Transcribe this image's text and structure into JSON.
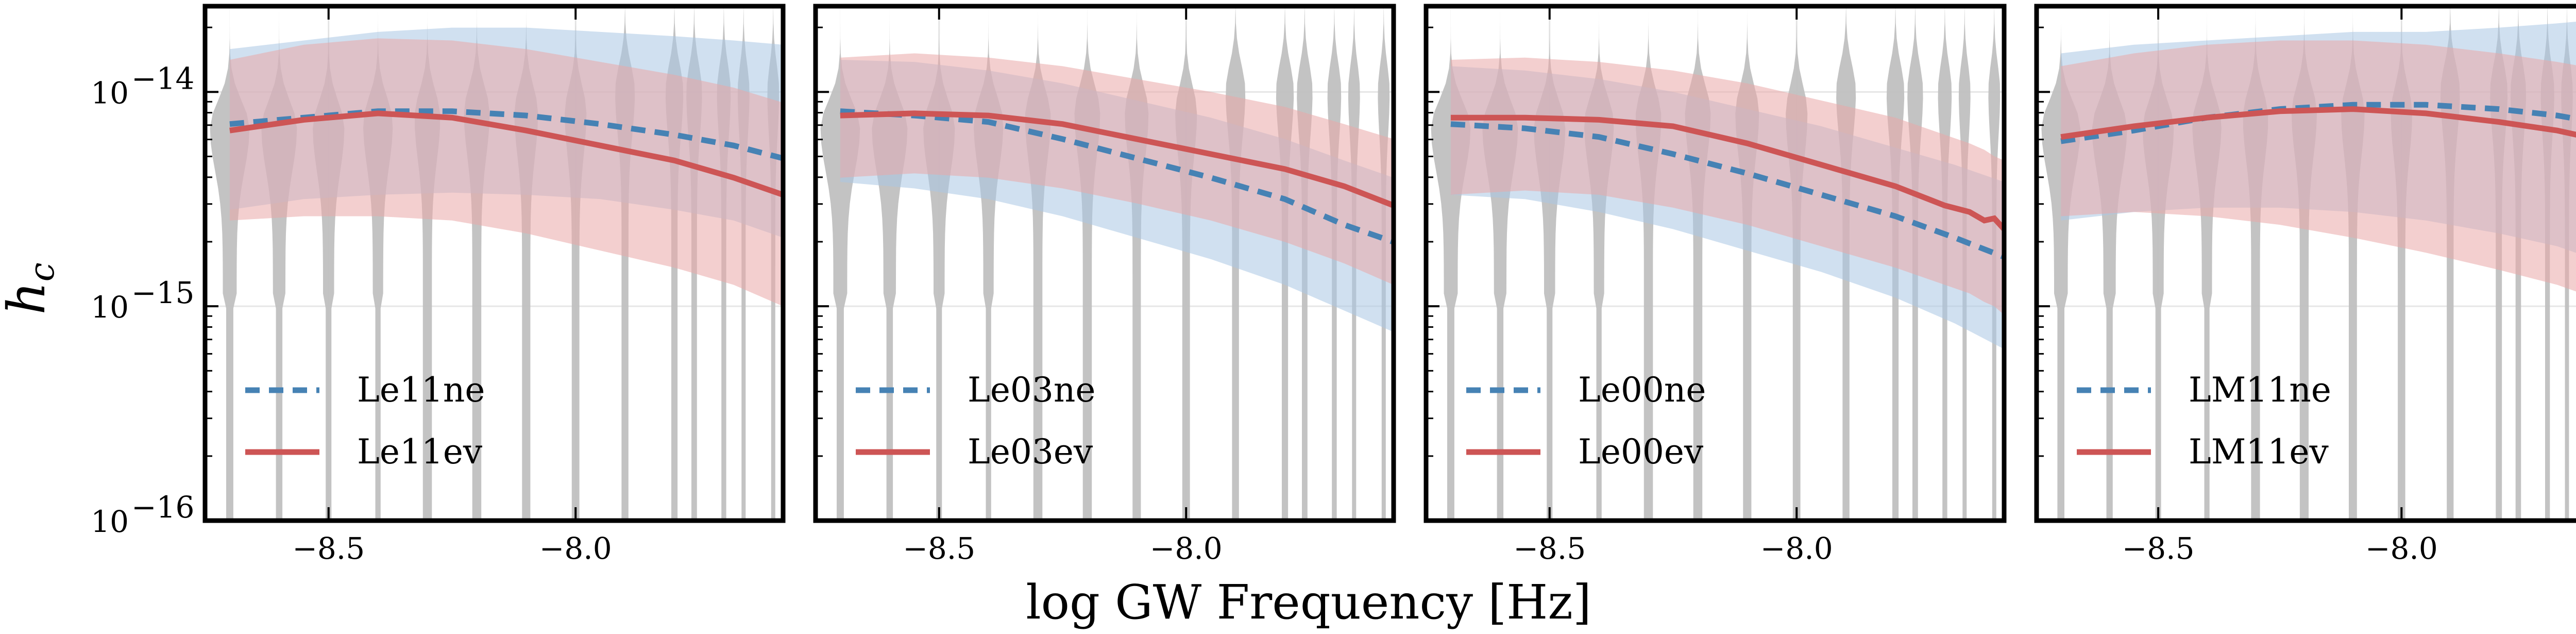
{
  "chart_data": {
    "type": "line",
    "xlabel": "log GW Frequency [Hz]",
    "ylabel": "h",
    "ylabel_sub": "c",
    "xlim": [
      -8.75,
      -7.58
    ],
    "ylim_log10": [
      -16,
      -13.6
    ],
    "yscale": "log",
    "xticks": [
      -8.5,
      -8.0
    ],
    "xtick_labels": [
      "−8.5",
      "−8.0"
    ],
    "yticks_exp": [
      -14,
      -15,
      -16
    ],
    "ytick_base": "10",
    "ytick_exp_labels": [
      "−14",
      "−15",
      "−16"
    ],
    "grid": true,
    "legend_position": "lower-left",
    "colors": {
      "dashed": "#4682b4",
      "solid": "#cd5555",
      "violin": "#c0c0c0",
      "band_dashed": "#a9c6e3",
      "band_solid": "#eaa7a7"
    },
    "violins": {
      "x": [
        -8.7,
        -8.6,
        -8.5,
        -8.4,
        -8.3,
        -8.2,
        -8.1,
        -8.0,
        -7.9,
        -7.8,
        -7.76,
        -7.7,
        -7.66,
        -7.6
      ],
      "median_log10": [
        -14.17,
        -14.17,
        -14.17,
        -14.15,
        -14.12,
        -14.1,
        -14.1,
        -14.1,
        -14.0,
        -14.0,
        -14.0,
        -14.0,
        -14.0,
        -14.0
      ],
      "width": [
        0.04,
        0.036,
        0.032,
        0.03,
        0.026,
        0.026,
        0.024,
        0.022,
        0.02,
        0.018,
        0.016,
        0.014,
        0.012,
        0.012
      ]
    },
    "panels": [
      {
        "series": [
          {
            "name": "Le11ne",
            "style": "dashed",
            "x": [
              -8.7,
              -8.55,
              -8.4,
              -8.25,
              -8.1,
              -7.95,
              -7.8,
              -7.68,
              -7.58
            ],
            "log10": [
              -14.15,
              -14.12,
              -14.09,
              -14.09,
              -14.11,
              -14.15,
              -14.2,
              -14.25,
              -14.31
            ],
            "band_lo": [
              -14.55,
              -14.5,
              -14.48,
              -14.47,
              -14.48,
              -14.5,
              -14.55,
              -14.6,
              -14.68
            ],
            "band_hi": [
              -13.8,
              -13.76,
              -13.72,
              -13.7,
              -13.7,
              -13.72,
              -13.74,
              -13.76,
              -13.78
            ]
          },
          {
            "name": "Le11ev",
            "style": "solid",
            "x": [
              -8.7,
              -8.55,
              -8.4,
              -8.25,
              -8.1,
              -7.95,
              -7.8,
              -7.68,
              -7.58
            ],
            "log10": [
              -14.18,
              -14.13,
              -14.1,
              -14.12,
              -14.18,
              -14.25,
              -14.32,
              -14.4,
              -14.48
            ],
            "band_lo": [
              -14.6,
              -14.58,
              -14.58,
              -14.6,
              -14.66,
              -14.74,
              -14.82,
              -14.9,
              -15.0
            ],
            "band_hi": [
              -13.85,
              -13.78,
              -13.75,
              -13.76,
              -13.8,
              -13.86,
              -13.92,
              -13.98,
              -14.05
            ]
          }
        ]
      },
      {
        "series": [
          {
            "name": "Le03ne",
            "style": "dashed",
            "x": [
              -8.7,
              -8.55,
              -8.4,
              -8.25,
              -8.1,
              -7.95,
              -7.8,
              -7.68,
              -7.58
            ],
            "log10": [
              -14.09,
              -14.11,
              -14.14,
              -14.22,
              -14.31,
              -14.4,
              -14.5,
              -14.62,
              -14.7
            ],
            "band_lo": [
              -14.42,
              -14.45,
              -14.5,
              -14.58,
              -14.68,
              -14.78,
              -14.9,
              -15.02,
              -15.12
            ],
            "band_hi": [
              -13.85,
              -13.86,
              -13.9,
              -13.96,
              -14.04,
              -14.12,
              -14.22,
              -14.32,
              -14.4
            ]
          },
          {
            "name": "Le03ev",
            "style": "solid",
            "x": [
              -8.7,
              -8.55,
              -8.4,
              -8.25,
              -8.1,
              -7.95,
              -7.8,
              -7.68,
              -7.58
            ],
            "log10": [
              -14.11,
              -14.1,
              -14.11,
              -14.15,
              -14.22,
              -14.29,
              -14.36,
              -14.44,
              -14.53
            ],
            "band_lo": [
              -14.4,
              -14.38,
              -14.4,
              -14.45,
              -14.52,
              -14.6,
              -14.7,
              -14.8,
              -14.9
            ],
            "band_hi": [
              -13.84,
              -13.82,
              -13.84,
              -13.88,
              -13.94,
              -14.0,
              -14.07,
              -14.15,
              -14.22
            ]
          }
        ]
      },
      {
        "series": [
          {
            "name": "Le00ne",
            "style": "dashed",
            "x": [
              -8.7,
              -8.55,
              -8.4,
              -8.25,
              -8.1,
              -7.95,
              -7.8,
              -7.68,
              -7.58
            ],
            "log10": [
              -14.15,
              -14.17,
              -14.21,
              -14.29,
              -14.38,
              -14.48,
              -14.58,
              -14.68,
              -14.77
            ],
            "band_lo": [
              -14.48,
              -14.5,
              -14.56,
              -14.64,
              -14.74,
              -14.84,
              -14.96,
              -15.08,
              -15.2
            ],
            "band_hi": [
              -13.88,
              -13.9,
              -13.94,
              -14.0,
              -14.08,
              -14.16,
              -14.26,
              -14.34,
              -14.42
            ]
          },
          {
            "name": "Le00ev",
            "style": "solid",
            "x": [
              -8.7,
              -8.55,
              -8.4,
              -8.25,
              -8.1,
              -7.95,
              -7.8,
              -7.7,
              -7.65,
              -7.62,
              -7.6,
              -7.58
            ],
            "log10": [
              -14.12,
              -14.12,
              -14.13,
              -14.16,
              -14.24,
              -14.34,
              -14.44,
              -14.53,
              -14.56,
              -14.6,
              -14.59,
              -14.64
            ],
            "band_lo": [
              -14.48,
              -14.46,
              -14.48,
              -14.54,
              -14.62,
              -14.72,
              -14.82,
              -14.9,
              -14.94,
              -14.98,
              -15.0,
              -15.04
            ],
            "band_hi": [
              -13.85,
              -13.84,
              -13.86,
              -13.9,
              -13.96,
              -14.04,
              -14.12,
              -14.2,
              -14.24,
              -14.27,
              -14.3,
              -14.32
            ]
          }
        ]
      },
      {
        "series": [
          {
            "name": "LM11ne",
            "style": "dashed",
            "x": [
              -8.7,
              -8.55,
              -8.4,
              -8.25,
              -8.1,
              -7.95,
              -7.8,
              -7.68,
              -7.58
            ],
            "log10": [
              -14.23,
              -14.18,
              -14.12,
              -14.08,
              -14.06,
              -14.06,
              -14.08,
              -14.11,
              -14.15
            ],
            "band_lo": [
              -14.6,
              -14.56,
              -14.54,
              -14.54,
              -14.56,
              -14.6,
              -14.66,
              -14.72,
              -14.8
            ],
            "band_hi": [
              -13.82,
              -13.78,
              -13.76,
              -13.74,
              -13.72,
              -13.72,
              -13.7,
              -13.68,
              -13.66
            ]
          },
          {
            "name": "LM11ev",
            "style": "solid",
            "x": [
              -8.7,
              -8.55,
              -8.4,
              -8.25,
              -8.1,
              -7.95,
              -7.8,
              -7.68,
              -7.58
            ],
            "log10": [
              -14.21,
              -14.16,
              -14.12,
              -14.09,
              -14.08,
              -14.1,
              -14.14,
              -14.18,
              -14.23
            ],
            "band_lo": [
              -14.58,
              -14.56,
              -14.58,
              -14.62,
              -14.68,
              -14.75,
              -14.83,
              -14.9,
              -14.98
            ],
            "band_hi": [
              -13.88,
              -13.82,
              -13.78,
              -13.76,
              -13.76,
              -13.78,
              -13.82,
              -13.86,
              -13.9
            ]
          }
        ]
      }
    ]
  }
}
